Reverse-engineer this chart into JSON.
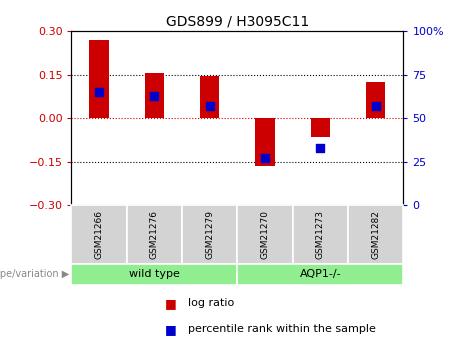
{
  "title": "GDS899 / H3095C11",
  "samples": [
    "GSM21266",
    "GSM21276",
    "GSM21279",
    "GSM21270",
    "GSM21273",
    "GSM21282"
  ],
  "log_ratios": [
    0.27,
    0.155,
    0.145,
    -0.165,
    -0.065,
    0.125
  ],
  "percentile_ranks": [
    65,
    63,
    57,
    27,
    33,
    57
  ],
  "groups": [
    "wild type",
    "wild type",
    "wild type",
    "AQP1-/-",
    "AQP1-/-",
    "AQP1-/-"
  ],
  "group_colors": [
    "#90EE90",
    "#90EE90"
  ],
  "ylim": [
    -0.3,
    0.3
  ],
  "y2lim": [
    0,
    100
  ],
  "yticks": [
    -0.3,
    -0.15,
    0,
    0.15,
    0.3
  ],
  "y2ticks": [
    0,
    25,
    50,
    75,
    100
  ],
  "hlines": [
    0.15,
    -0.15
  ],
  "hline_zero_color": "#cc0000",
  "bar_color": "#cc0000",
  "dot_color": "#0000cc",
  "bar_width": 0.35,
  "dot_size": 28,
  "bg_color": "#ffffff",
  "plot_bg": "#ffffff",
  "sample_bg": "#d3d3d3",
  "legend_label_ratio": "log ratio",
  "legend_label_pct": "percentile rank within the sample",
  "genotype_label": "genotype/variation",
  "wild_type_label": "wild type",
  "aqp1_label": "AQP1-/-",
  "left_color": "#cc0000",
  "right_color": "#0000cc"
}
